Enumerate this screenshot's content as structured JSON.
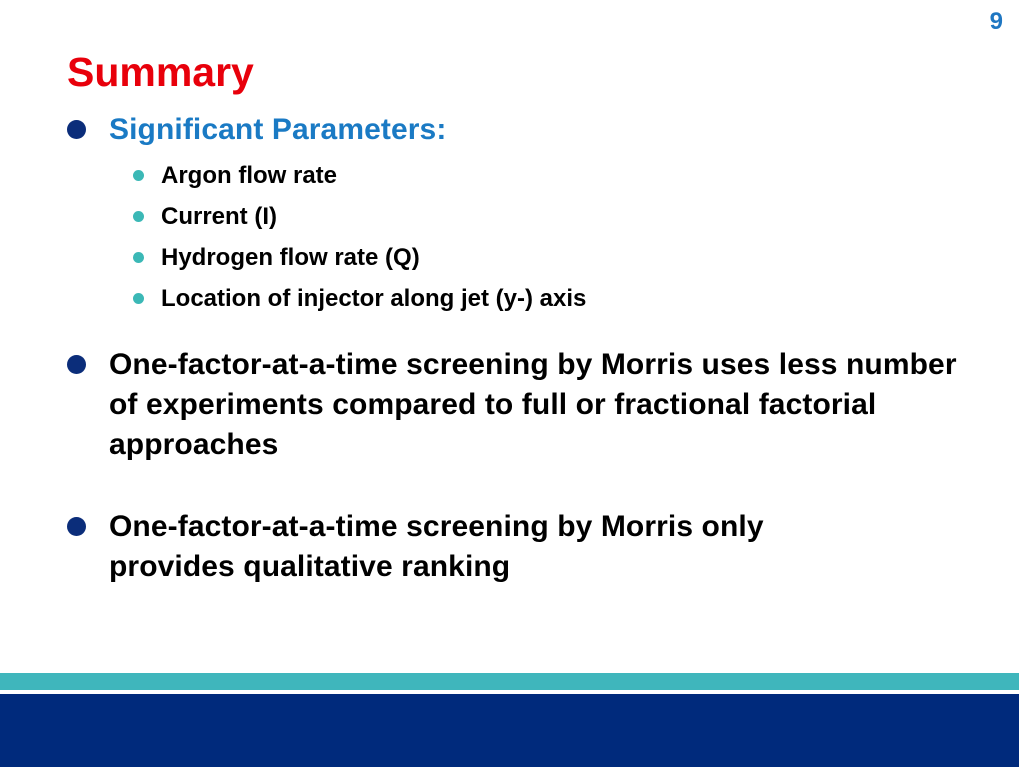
{
  "slide": {
    "number": "9",
    "title": "Summary"
  },
  "bullets": {
    "significant": {
      "heading": "Significant Parameters:",
      "items": [
        "Argon flow rate",
        "Current (I)",
        "Hydrogen flow rate (Q)",
        "Location of injector along jet (y-) axis"
      ]
    },
    "morris_fewer": "One-factor-at-a-time screening by Morris uses less number of experiments compared to full or fractional factorial approaches",
    "morris_qualitative": "One-factor-at-a-time screening by Morris only provides qualitative ranking"
  },
  "colors": {
    "title": "#e8000b",
    "heading": "#1a7ac4",
    "slide_number": "#1f77c2",
    "main_bullet": "#0b2d7a",
    "sub_bullet": "#3bb8b6",
    "footer_teal": "#3fb6bc",
    "footer_navy": "#002a7c"
  }
}
